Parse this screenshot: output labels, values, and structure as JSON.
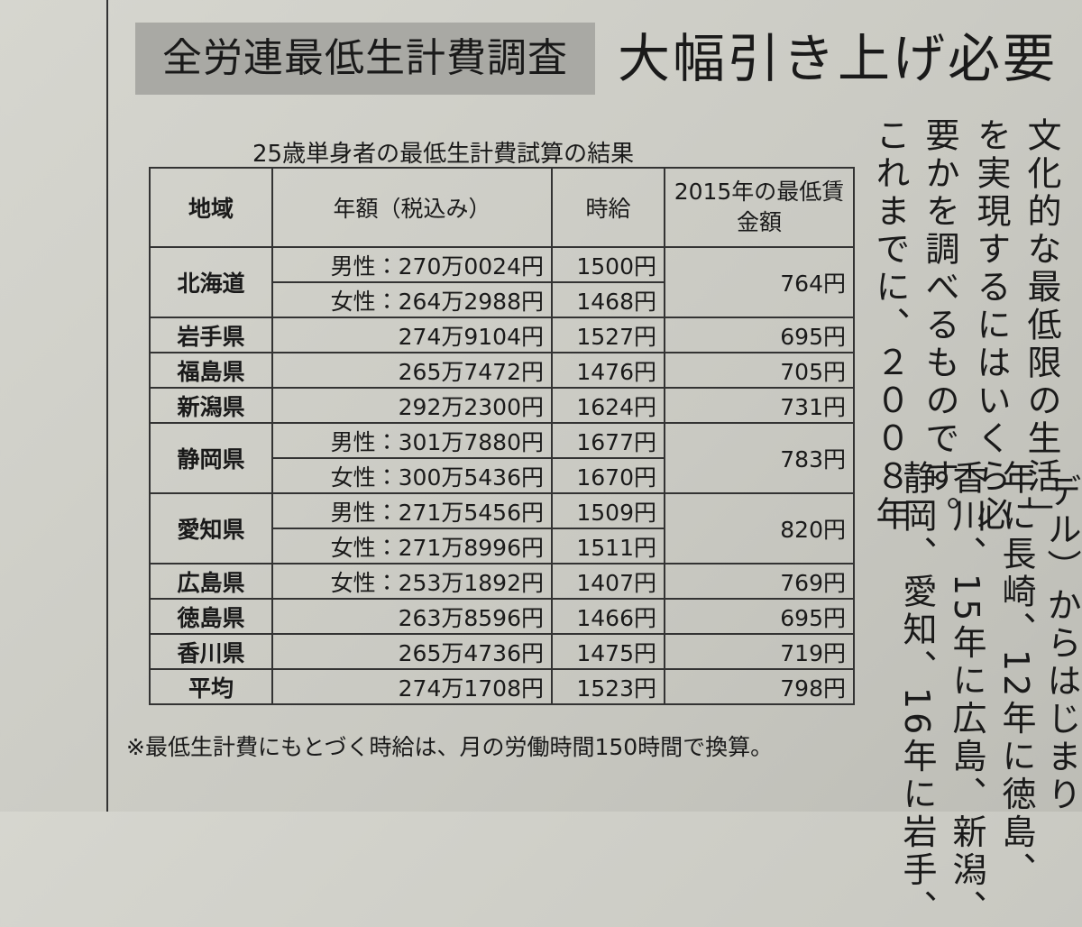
{
  "header": {
    "label": "全労連最低生計費調査",
    "title": "大幅引き上げ必要"
  },
  "table": {
    "caption": "25歳単身者の最低生計費試算の結果",
    "columns": [
      "地域",
      "年額（税込み）",
      "時給",
      "2015年の最低賃金額"
    ],
    "rows": [
      {
        "region": "北海道",
        "entries": [
          {
            "annual": "男性：270万0024円",
            "hourly": "1500円"
          },
          {
            "annual": "女性：264万2988円",
            "hourly": "1468円"
          }
        ],
        "minimum": "764円"
      },
      {
        "region": "岩手県",
        "entries": [
          {
            "annual": "274万9104円",
            "hourly": "1527円"
          }
        ],
        "minimum": "695円"
      },
      {
        "region": "福島県",
        "entries": [
          {
            "annual": "265万7472円",
            "hourly": "1476円"
          }
        ],
        "minimum": "705円"
      },
      {
        "region": "新潟県",
        "entries": [
          {
            "annual": "292万2300円",
            "hourly": "1624円"
          }
        ],
        "minimum": "731円"
      },
      {
        "region": "静岡県",
        "entries": [
          {
            "annual": "男性：301万7880円",
            "hourly": "1677円"
          },
          {
            "annual": "女性：300万5436円",
            "hourly": "1670円"
          }
        ],
        "minimum": "783円"
      },
      {
        "region": "愛知県",
        "entries": [
          {
            "annual": "男性：271万5456円",
            "hourly": "1509円"
          },
          {
            "annual": "女性：271万8996円",
            "hourly": "1511円"
          }
        ],
        "minimum": "820円"
      },
      {
        "region": "広島県",
        "entries": [
          {
            "annual": "女性：253万1892円",
            "hourly": "1407円"
          }
        ],
        "minimum": "769円"
      },
      {
        "region": "徳島県",
        "entries": [
          {
            "annual": "263万8596円",
            "hourly": "1466円"
          }
        ],
        "minimum": "695円"
      },
      {
        "region": "香川県",
        "entries": [
          {
            "annual": "265万4736円",
            "hourly": "1475円"
          }
        ],
        "minimum": "719円"
      },
      {
        "region": "平均",
        "entries": [
          {
            "annual": "274万1708円",
            "hourly": "1523円"
          }
        ],
        "minimum": "798円"
      }
    ],
    "note": "※最低生計費にもとづく時給は、月の労働時間150時間で換算。"
  },
  "article": {
    "upper": [
      "文化的な最低限の生活」",
      "を実現するにはいくら必",
      "要かを調べるものです。",
      "これまでに、２００８年"
    ],
    "lower": [
      "デル）からはじまり",
      "年に長崎、12年に徳島、",
      "香川、15年に広島、新潟、",
      "静岡、愛知、16年に岩手、"
    ]
  }
}
